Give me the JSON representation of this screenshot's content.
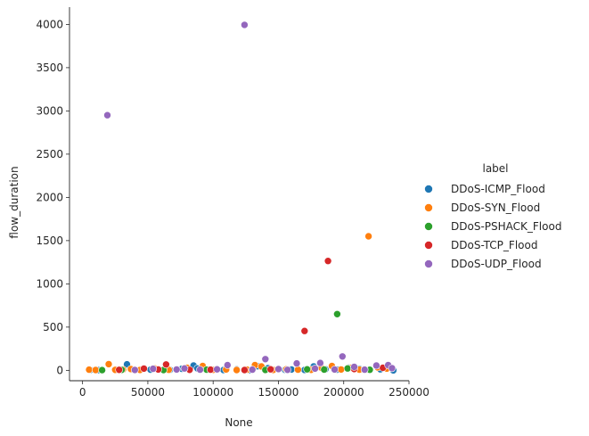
{
  "chart_data": {
    "type": "scatter",
    "title": "",
    "xlabel": "None",
    "ylabel": "flow_duration",
    "xlim": [
      -10000,
      250000
    ],
    "ylim": [
      -120,
      4200
    ],
    "xticks": [
      0,
      50000,
      100000,
      150000,
      200000,
      250000
    ],
    "xtick_labels": [
      "0",
      "50000",
      "100000",
      "150000",
      "200000",
      "250000"
    ],
    "yticks": [
      0,
      500,
      1000,
      1500,
      2000,
      2500,
      3000,
      3500,
      4000
    ],
    "ytick_labels": [
      "0",
      "500",
      "1000",
      "1500",
      "2000",
      "2500",
      "3000",
      "3500",
      "4000"
    ],
    "grid": false,
    "legend": {
      "title": "label",
      "position": "right"
    },
    "series": [
      {
        "name": "DDoS-ICMP_Flood",
        "color": "#1f77b4",
        "x": [
          6000,
          12000,
          34000,
          52000,
          58000,
          67000,
          76000,
          85000,
          88000,
          96000,
          108000,
          118000,
          128000,
          134000,
          142000,
          155000,
          160000,
          170000,
          177000,
          186000,
          195000,
          204000,
          212000,
          220000,
          228000,
          238000
        ],
        "y": [
          5,
          3,
          70,
          8,
          12,
          6,
          18,
          55,
          22,
          9,
          4,
          11,
          3,
          48,
          25,
          7,
          10,
          5,
          45,
          12,
          8,
          30,
          18,
          6,
          12,
          0
        ]
      },
      {
        "name": "DDoS-SYN_Flood",
        "color": "#ff7f0e",
        "x": [
          5000,
          10000,
          20000,
          25000,
          31000,
          37000,
          44000,
          55000,
          66000,
          72000,
          80000,
          92000,
          100000,
          110000,
          118000,
          126000,
          132000,
          137000,
          146000,
          156000,
          165000,
          175000,
          183000,
          191000,
          198000,
          206000,
          212000,
          219000,
          226000,
          233000
        ],
        "y": [
          8,
          4,
          72,
          6,
          9,
          15,
          5,
          22,
          7,
          13,
          30,
          50,
          6,
          10,
          4,
          8,
          60,
          45,
          5,
          12,
          8,
          6,
          30,
          50,
          10,
          30,
          8,
          1550,
          35,
          20
        ]
      },
      {
        "name": "DDoS-PSHACK_Flood",
        "color": "#2ca02c",
        "x": [
          15000,
          30000,
          62000,
          95000,
          140000,
          172000,
          185000,
          195000,
          203000,
          220000
        ],
        "y": [
          3,
          6,
          4,
          8,
          5,
          12,
          9,
          650,
          22,
          7
        ]
      },
      {
        "name": "DDoS-TCP_Flood",
        "color": "#d62728",
        "x": [
          28000,
          47000,
          58000,
          64000,
          82000,
          98000,
          124000,
          144000,
          170000,
          188000,
          208000,
          230000
        ],
        "y": [
          6,
          20,
          10,
          68,
          6,
          8,
          4,
          12,
          455,
          1265,
          15,
          30
        ]
      },
      {
        "name": "DDoS-UDP_Flood",
        "color": "#9467bd",
        "x": [
          19000,
          40000,
          54000,
          72000,
          78000,
          90000,
          103000,
          111000,
          124000,
          130000,
          140000,
          150000,
          157000,
          164000,
          178000,
          182000,
          193000,
          199000,
          208000,
          216000,
          225000,
          234000,
          237000
        ],
        "y": [
          2950,
          5,
          18,
          10,
          22,
          8,
          12,
          60,
          3995,
          8,
          130,
          15,
          6,
          80,
          20,
          85,
          10,
          160,
          40,
          8,
          55,
          60,
          25
        ]
      }
    ]
  }
}
